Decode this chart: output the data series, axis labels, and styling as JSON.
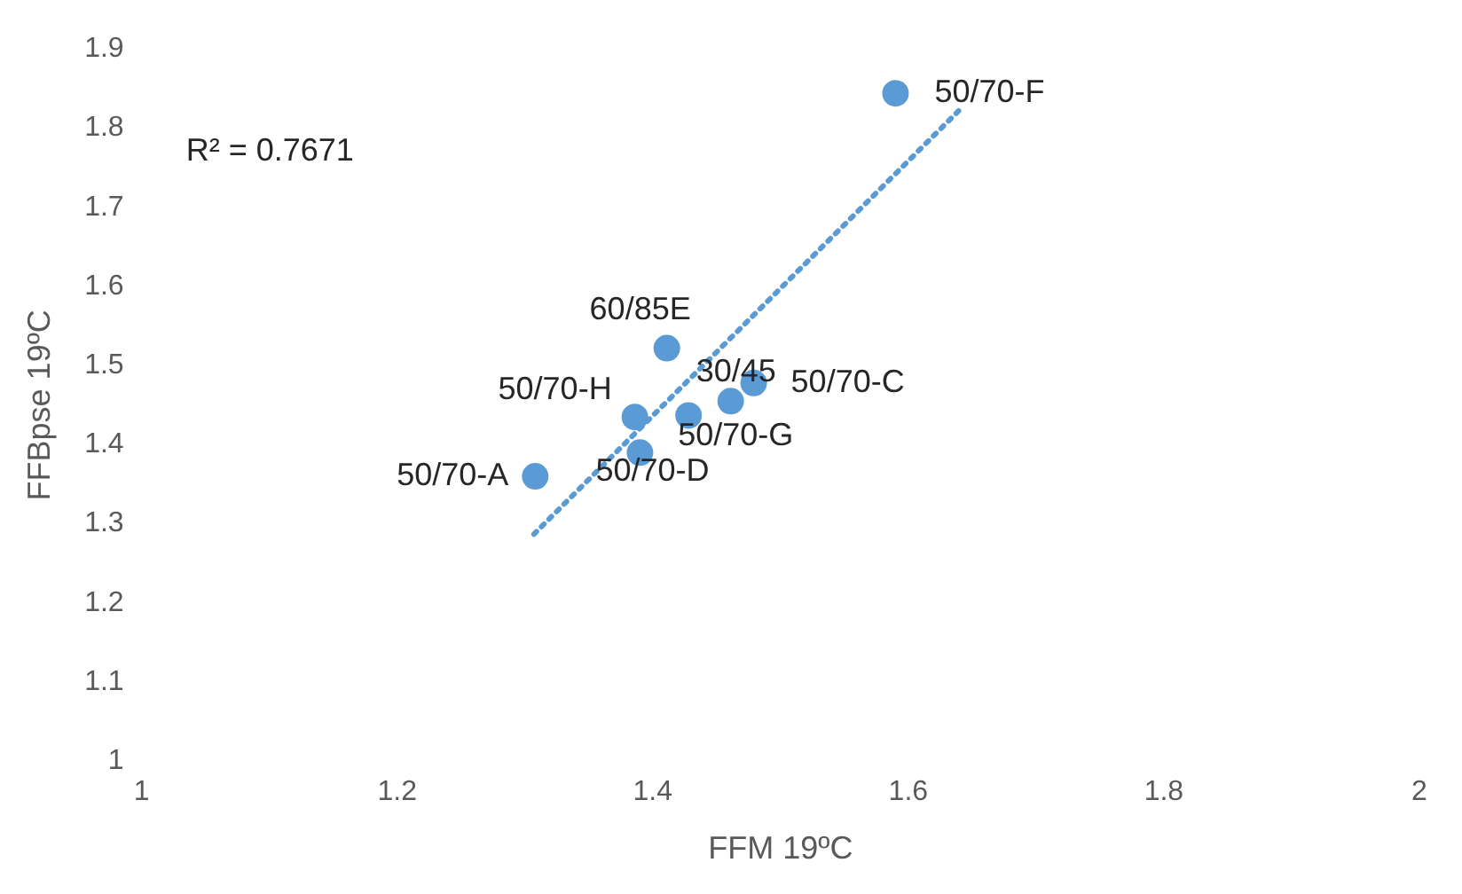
{
  "chart_data": {
    "type": "scatter",
    "xlabel": "FFM 19ºC",
    "ylabel": "FFBpse 19ºC",
    "xlim": [
      1,
      2
    ],
    "xticks": [
      1,
      1.2,
      1.4,
      1.6,
      1.8,
      2
    ],
    "ylim": [
      1,
      1.9
    ],
    "yticks": [
      1,
      1.1,
      1.2,
      1.3,
      1.4,
      1.5,
      1.6,
      1.7,
      1.8,
      1.9
    ],
    "grid": false,
    "legend": false,
    "marker": "circle",
    "series": [
      {
        "type": "scatter",
        "color": "#5b9bd5",
        "x": [
          1.59,
          1.411,
          1.479,
          1.461,
          1.428,
          1.386,
          1.39,
          1.308
        ],
        "values": [
          1.844,
          1.522,
          1.478,
          1.455,
          1.437,
          1.435,
          1.39,
          1.36
        ]
      },
      {
        "type": "line",
        "color": "#5b9bd5",
        "line_style": "dotted",
        "marker": "none",
        "x": [
          1.307,
          1.642
        ],
        "values": [
          1.287,
          1.826
        ]
      }
    ],
    "annotations": [
      "R² = 0.7671",
      {
        "text": "50/70-F",
        "x": 1.59,
        "y": 1.844
      },
      {
        "text": "60/85E",
        "x": 1.411,
        "y": 1.522
      },
      {
        "text": "50/70-C",
        "x": 1.479,
        "y": 1.478
      },
      {
        "text": "30/45",
        "x": 1.461,
        "y": 1.455
      },
      {
        "text": "50/70-G",
        "x": 1.428,
        "y": 1.437
      },
      {
        "text": "50/70-H",
        "x": 1.386,
        "y": 1.435
      },
      {
        "text": "50/70-D",
        "x": 1.39,
        "y": 1.39
      },
      {
        "text": "50/70-A",
        "x": 1.308,
        "y": 1.36
      }
    ]
  }
}
